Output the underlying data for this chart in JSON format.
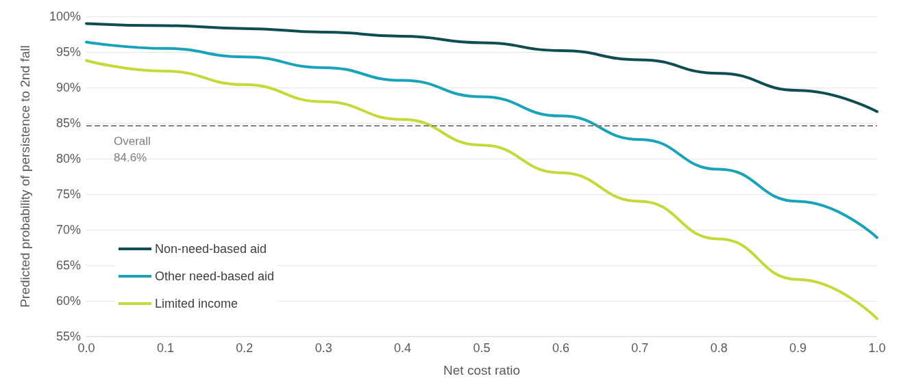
{
  "chart_data": {
    "type": "line",
    "xlabel": "Net cost ratio",
    "ylabel": "Predicted probability of persistence to 2nd fall",
    "x": [
      0,
      0.1,
      0.2,
      0.3,
      0.4,
      0.5,
      0.6,
      0.7,
      0.8,
      0.9,
      1.0
    ],
    "series": [
      {
        "name": "Non-need-based aid",
        "color": "#0e4d52",
        "values": [
          99.0,
          98.7,
          98.3,
          97.8,
          97.2,
          96.3,
          95.2,
          93.9,
          92.0,
          89.6,
          86.6
        ]
      },
      {
        "name": "Other need-based aid",
        "color": "#1aa3b8",
        "values": [
          96.4,
          95.5,
          94.3,
          92.8,
          91.0,
          88.7,
          86.0,
          82.7,
          78.5,
          74.0,
          68.9
        ]
      },
      {
        "name": "Limited income",
        "color": "#c5d93a",
        "values": [
          93.8,
          92.3,
          90.4,
          88.0,
          85.5,
          81.9,
          78.0,
          74.0,
          68.7,
          63.0,
          57.5
        ]
      }
    ],
    "xlim": [
      0,
      1
    ],
    "xticks": [
      {
        "value": 0,
        "label": "0.0"
      },
      {
        "value": 0.1,
        "label": "0.1"
      },
      {
        "value": 0.2,
        "label": "0.2"
      },
      {
        "value": 0.3,
        "label": "0.3"
      },
      {
        "value": 0.4,
        "label": "0.4"
      },
      {
        "value": 0.5,
        "label": "0.5"
      },
      {
        "value": 0.6,
        "label": "0.6"
      },
      {
        "value": 0.7,
        "label": "0.7"
      },
      {
        "value": 0.8,
        "label": "0.8"
      },
      {
        "value": 0.9,
        "label": "0.9"
      },
      {
        "value": 1,
        "label": "1.0"
      }
    ],
    "ylim": [
      55,
      100
    ],
    "yticks": [
      {
        "value": 55,
        "label": "55%"
      },
      {
        "value": 60,
        "label": "60%"
      },
      {
        "value": 65,
        "label": "65%"
      },
      {
        "value": 70,
        "label": "70%"
      },
      {
        "value": 75,
        "label": "75%"
      },
      {
        "value": 80,
        "label": "80%"
      },
      {
        "value": 85,
        "label": "85%"
      },
      {
        "value": 90,
        "label": "90%"
      },
      {
        "value": 95,
        "label": "95%"
      },
      {
        "value": 100,
        "label": "100%"
      }
    ],
    "ref_lines": [
      {
        "axis": "y",
        "value": 84.6,
        "label": "Overall\n84.6%",
        "color": "#808080",
        "line_style": "dashed"
      }
    ],
    "grid": "y",
    "legend": "bottom left",
    "marker": "none",
    "line_style": "solid"
  }
}
